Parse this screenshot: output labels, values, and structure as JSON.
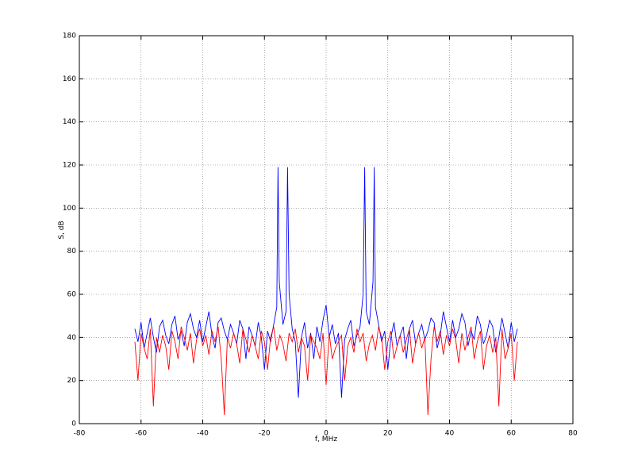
{
  "chart_data": {
    "type": "line",
    "xlabel": "f, MHz",
    "ylabel": "S, dB",
    "xlim": [
      -80,
      80
    ],
    "xticks": [
      -80,
      -60,
      -40,
      -20,
      0,
      20,
      40,
      60,
      80
    ],
    "ylim": [
      0,
      180
    ],
    "yticks": [
      0,
      20,
      40,
      60,
      80,
      100,
      120,
      140,
      160,
      180
    ],
    "grid": true,
    "series": [
      {
        "color": "#0000ff",
        "x": [
          -62,
          -61,
          -60,
          -59,
          -58,
          -57,
          -56,
          -55,
          -54,
          -53,
          -52,
          -51,
          -50,
          -49,
          -48,
          -47,
          -46,
          -45,
          -44,
          -43,
          -42,
          -41,
          -40,
          -39,
          -38,
          -37,
          -36,
          -35,
          -34,
          -33,
          -32,
          -31,
          -30,
          -29,
          -28,
          -27,
          -26,
          -25,
          -24,
          -23,
          -22,
          -21,
          -20,
          -19,
          -18,
          -17,
          -16,
          -15.6,
          -15.2,
          -14,
          -13,
          -12.5,
          -12,
          -11,
          -10,
          -9,
          -8,
          -7,
          -6,
          -5,
          -4,
          -3,
          -2,
          -1,
          0,
          1,
          2,
          3,
          4,
          5,
          6,
          7,
          8,
          9,
          10,
          11,
          12,
          12.5,
          13,
          14,
          15.2,
          15.6,
          16,
          17,
          18,
          19,
          20,
          21,
          22,
          23,
          24,
          25,
          26,
          27,
          28,
          29,
          30,
          31,
          32,
          33,
          34,
          35,
          36,
          37,
          38,
          39,
          40,
          41,
          42,
          43,
          44,
          45,
          46,
          47,
          48,
          49,
          50,
          51,
          52,
          53,
          54,
          55,
          56,
          57,
          58,
          59,
          60,
          61,
          62
        ],
        "values": [
          44,
          38,
          47,
          35,
          42,
          49,
          40,
          33,
          45,
          48,
          41,
          37,
          46,
          50,
          39,
          43,
          36,
          47,
          51,
          44,
          40,
          48,
          38,
          45,
          52,
          41,
          35,
          47,
          49,
          43,
          39,
          46,
          42,
          37,
          48,
          44,
          30,
          45,
          41,
          36,
          47,
          40,
          25,
          43,
          38,
          46,
          54,
          119,
          66,
          46,
          52,
          119,
          60,
          44,
          38,
          12,
          40,
          47,
          35,
          42,
          30,
          45,
          38,
          48,
          55,
          40,
          46,
          37,
          42,
          12,
          39,
          44,
          48,
          36,
          41,
          45,
          60,
          119,
          52,
          46,
          66,
          119,
          54,
          46,
          38,
          43,
          25,
          40,
          47,
          36,
          41,
          45,
          30,
          44,
          48,
          37,
          42,
          46,
          39,
          43,
          49,
          47,
          35,
          41,
          52,
          45,
          38,
          48,
          40,
          44,
          51,
          47,
          36,
          43,
          39,
          50,
          46,
          37,
          41,
          48,
          45,
          33,
          40,
          49,
          42,
          35,
          47,
          38,
          44
        ]
      },
      {
        "color": "#ff0000",
        "x": [
          -62,
          -61,
          -60,
          -59,
          -58,
          -57,
          -56,
          -55,
          -54,
          -53,
          -52,
          -51,
          -50,
          -49,
          -48,
          -47,
          -46,
          -45,
          -44,
          -43,
          -42,
          -41,
          -40,
          -39,
          -38,
          -37,
          -36,
          -35,
          -34,
          -33,
          -32,
          -31,
          -30,
          -29,
          -28,
          -27,
          -26,
          -25,
          -24,
          -23,
          -22,
          -21,
          -20,
          -19,
          -18,
          -17,
          -16,
          -15,
          -14,
          -13,
          -12,
          -11,
          -10,
          -9,
          -8,
          -7,
          -6,
          -5,
          -4,
          -3,
          -2,
          -1,
          0,
          1,
          2,
          3,
          4,
          5,
          6,
          7,
          8,
          9,
          10,
          11,
          12,
          13,
          14,
          15,
          16,
          17,
          18,
          19,
          20,
          21,
          22,
          23,
          24,
          25,
          26,
          27,
          28,
          29,
          30,
          31,
          32,
          33,
          34,
          35,
          36,
          37,
          38,
          39,
          40,
          41,
          42,
          43,
          44,
          45,
          46,
          47,
          48,
          49,
          50,
          51,
          52,
          53,
          54,
          55,
          56,
          57,
          58,
          59,
          60,
          61,
          62
        ],
        "values": [
          38,
          20,
          42,
          35,
          30,
          44,
          8,
          40,
          33,
          41,
          36,
          25,
          43,
          38,
          30,
          45,
          40,
          34,
          42,
          28,
          39,
          44,
          36,
          41,
          32,
          43,
          38,
          45,
          30,
          4,
          40,
          35,
          42,
          37,
          28,
          44,
          39,
          33,
          41,
          36,
          30,
          43,
          38,
          25,
          40,
          45,
          34,
          41,
          37,
          29,
          42,
          38,
          44,
          33,
          40,
          36,
          20,
          41,
          38,
          35,
          30,
          42,
          18,
          42,
          30,
          35,
          38,
          41,
          20,
          36,
          40,
          33,
          44,
          38,
          42,
          29,
          37,
          41,
          34,
          45,
          40,
          25,
          38,
          43,
          30,
          36,
          41,
          33,
          39,
          44,
          28,
          37,
          42,
          35,
          40,
          4,
          30,
          45,
          38,
          43,
          32,
          41,
          36,
          44,
          39,
          28,
          42,
          34,
          40,
          45,
          30,
          38,
          43,
          25,
          36,
          41,
          33,
          40,
          8,
          44,
          30,
          35,
          42,
          20,
          38
        ]
      }
    ]
  }
}
